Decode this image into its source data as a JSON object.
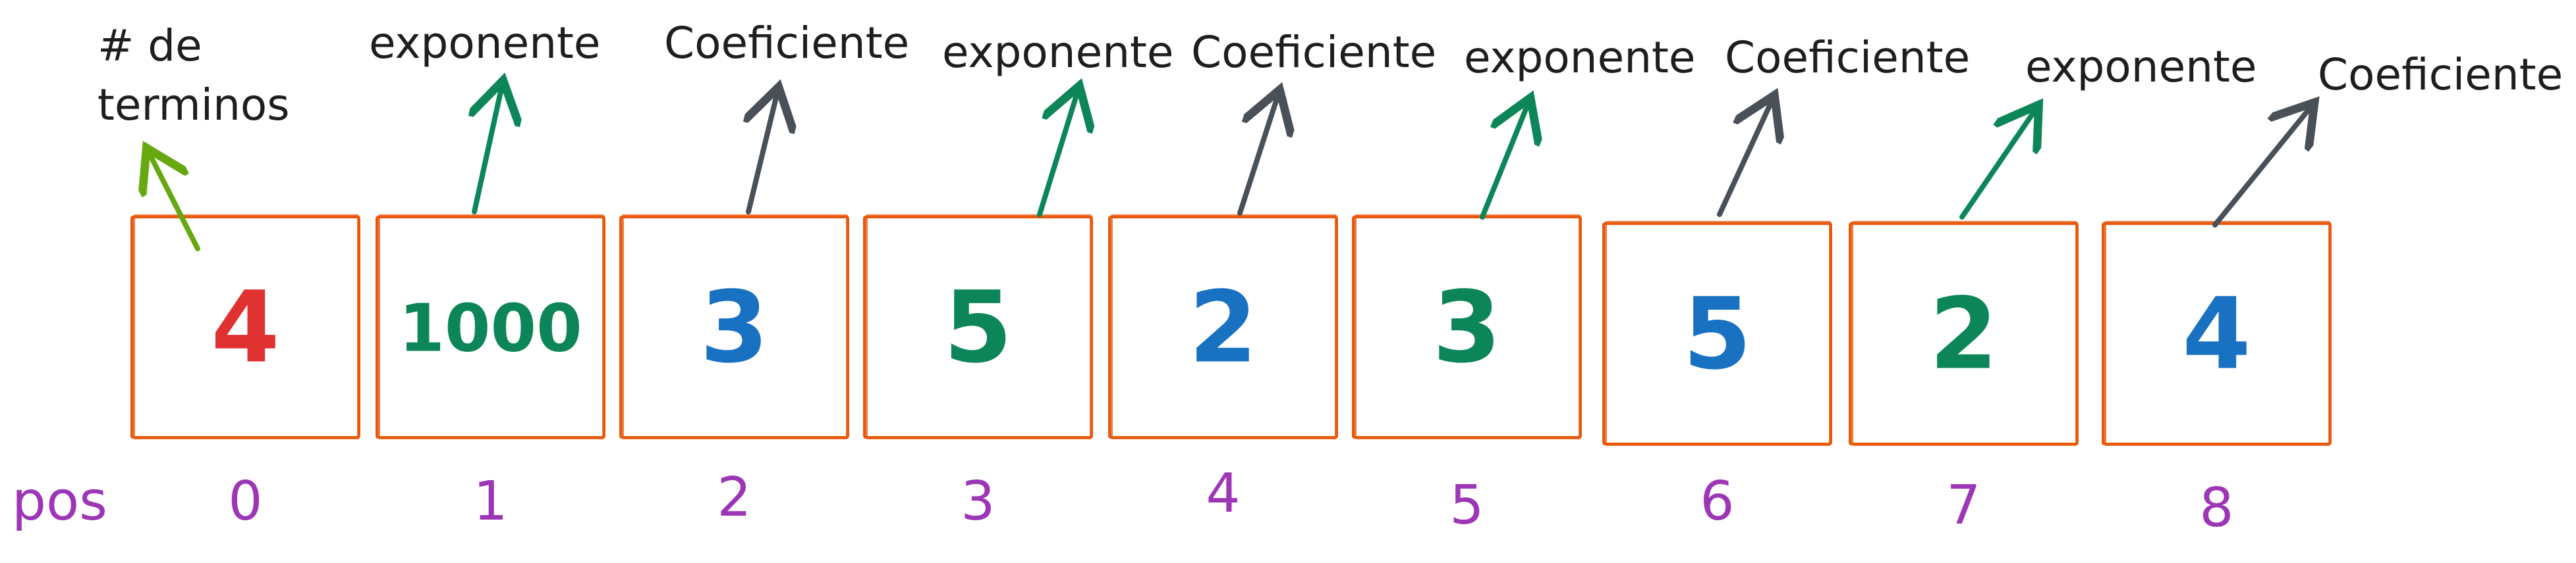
{
  "colors": {
    "box_stroke": "#e8590c",
    "pos": "#9c36b5",
    "red": "#e03131",
    "green": "#0c8559",
    "blue": "#1971c2",
    "dark": "#495057",
    "lime": "#66a80f",
    "label": "#1e1e1e"
  },
  "header_label": {
    "line1": "# de",
    "line2": "terminos"
  },
  "pos_label": "pos",
  "cells": [
    {
      "value": "4",
      "index": "0",
      "color": "red",
      "label": "",
      "arrow": "lime"
    },
    {
      "value": "1000",
      "index": "1",
      "color": "green",
      "label": "exponente",
      "arrow": "green"
    },
    {
      "value": "3",
      "index": "2",
      "color": "blue",
      "label": "Coeficiente",
      "arrow": "dark"
    },
    {
      "value": "5",
      "index": "3",
      "color": "green",
      "label": "exponente",
      "arrow": "green"
    },
    {
      "value": "2",
      "index": "4",
      "color": "blue",
      "label": "Coeficiente",
      "arrow": "dark"
    },
    {
      "value": "3",
      "index": "5",
      "color": "green",
      "label": "exponente",
      "arrow": "green"
    },
    {
      "value": "5",
      "index": "6",
      "color": "blue",
      "label": "Coeficiente",
      "arrow": "dark"
    },
    {
      "value": "2",
      "index": "7",
      "color": "green",
      "label": "exponente",
      "arrow": "green"
    },
    {
      "value": "4",
      "index": "8",
      "color": "blue",
      "label": "Coeficiente",
      "arrow": "dark"
    }
  ]
}
